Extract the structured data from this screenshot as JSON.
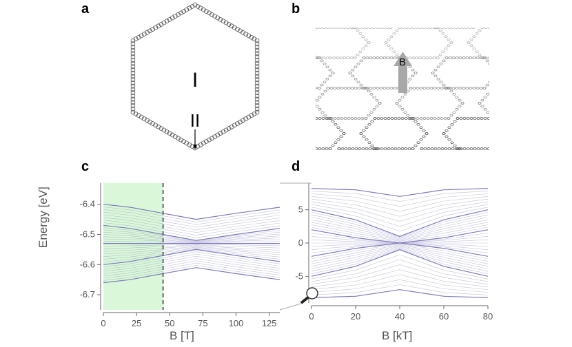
{
  "panels": {
    "a": "a",
    "b": "b",
    "c": "c",
    "d": "d"
  },
  "panel_a": {
    "region_labels": [
      "I",
      "II"
    ]
  },
  "panel_b": {
    "field_label": "B"
  },
  "colors": {
    "lattice": "#555555",
    "levels": "#7b79b9",
    "shade": "#cdf5cc",
    "dash": "#666666",
    "arrow": "#a8a8a8"
  },
  "chart_data": [
    {
      "type": "line",
      "panel": "c",
      "xlabel": "B [T]",
      "ylabel": "Energy [eV]",
      "xlim": [
        0,
        133
      ],
      "ylim": [
        -6.75,
        -6.33
      ],
      "xticks": [
        "0",
        "25",
        "50",
        "75",
        "100",
        "125"
      ],
      "yticks": [
        "-6.4",
        "-6.5",
        "-6.6",
        "-6.7"
      ],
      "shaded_region_x": [
        0,
        45
      ],
      "dashed_line_x": 45,
      "series": [
        {
          "x": [
            0,
            20,
            45,
            70,
            100,
            133
          ],
          "y": [
            -6.4,
            -6.41,
            -6.43,
            -6.45,
            -6.43,
            -6.41
          ]
        },
        {
          "x": [
            0,
            20,
            45,
            70,
            100,
            133
          ],
          "y": [
            -6.47,
            -6.48,
            -6.5,
            -6.52,
            -6.5,
            -6.48
          ]
        },
        {
          "x": [
            0,
            20,
            45,
            70,
            100,
            133
          ],
          "y": [
            -6.53,
            -6.53,
            -6.53,
            -6.53,
            -6.53,
            -6.53
          ]
        },
        {
          "x": [
            0,
            20,
            45,
            70,
            100,
            133
          ],
          "y": [
            -6.6,
            -6.59,
            -6.57,
            -6.55,
            -6.57,
            -6.59
          ]
        },
        {
          "x": [
            0,
            20,
            45,
            70,
            100,
            133
          ],
          "y": [
            -6.66,
            -6.65,
            -6.63,
            -6.61,
            -6.63,
            -6.65
          ]
        }
      ]
    },
    {
      "type": "line",
      "panel": "d",
      "xlabel": "B [kT]",
      "ylabel": "",
      "xlim": [
        0,
        80
      ],
      "ylim": [
        -9,
        9
      ],
      "xticks": [
        "0",
        "20",
        "40",
        "60",
        "80"
      ],
      "yticks": [
        "5",
        "0",
        "-5"
      ],
      "series": [
        {
          "x": [
            0,
            20,
            40,
            60,
            80
          ],
          "y": [
            8.2,
            8.0,
            7.0,
            8.0,
            8.2
          ]
        },
        {
          "x": [
            0,
            20,
            40,
            60,
            80
          ],
          "y": [
            5.0,
            3.5,
            1.0,
            3.5,
            5.0
          ]
        },
        {
          "x": [
            0,
            20,
            40,
            60,
            80
          ],
          "y": [
            2.0,
            0.8,
            0.0,
            0.8,
            2.0
          ]
        },
        {
          "x": [
            0,
            20,
            40,
            60,
            80
          ],
          "y": [
            -2.0,
            -0.8,
            0.0,
            -0.8,
            -2.0
          ]
        },
        {
          "x": [
            0,
            20,
            40,
            60,
            80
          ],
          "y": [
            -5.0,
            -3.5,
            -1.0,
            -3.5,
            -5.0
          ]
        },
        {
          "x": [
            0,
            20,
            40,
            60,
            80
          ],
          "y": [
            -8.2,
            -8.0,
            -7.0,
            -8.0,
            -8.2
          ]
        }
      ]
    }
  ]
}
